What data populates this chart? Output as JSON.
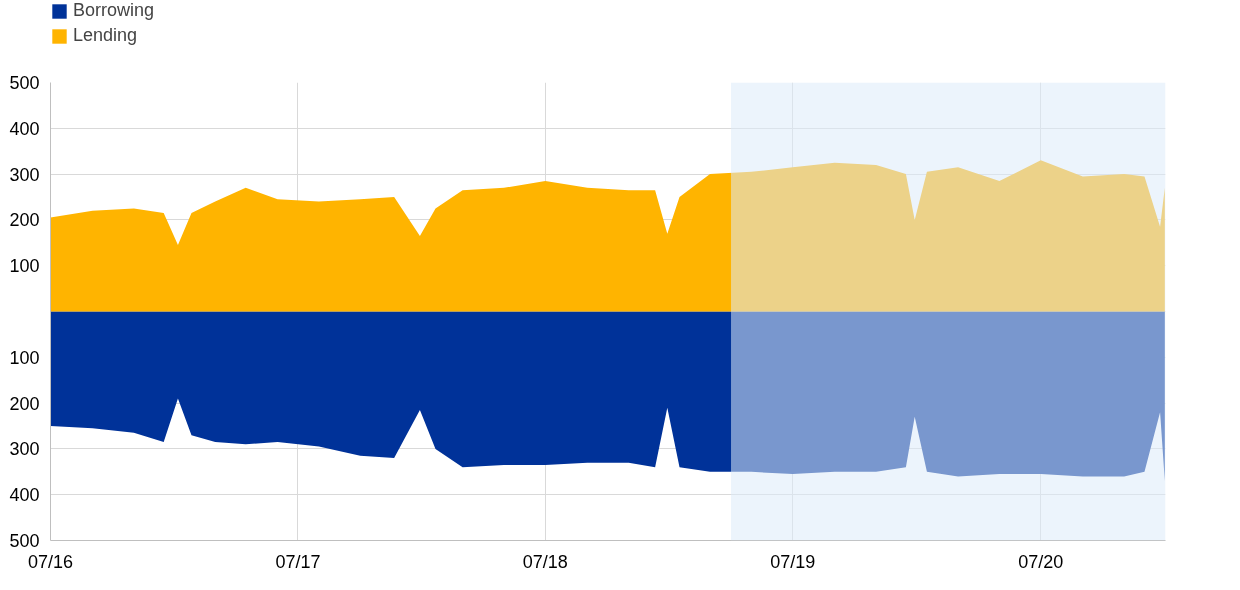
{
  "chart_data": {
    "type": "area",
    "legend": "top left",
    "grid": true,
    "x": [
      "2016-07-01",
      "2016-09-01",
      "2016-11-01",
      "2016-12-15",
      "2017-01-05",
      "2017-01-25",
      "2017-03-01",
      "2017-04-15",
      "2017-06-01",
      "2017-08-01",
      "2017-10-01",
      "2017-11-20",
      "2017-12-28",
      "2018-01-20",
      "2018-03-01",
      "2018-05-01",
      "2018-07-01",
      "2018-09-01",
      "2018-11-01",
      "2018-12-10",
      "2018-12-28",
      "2019-01-15",
      "2019-03-01",
      "2019-05-01",
      "2019-07-01",
      "2019-09-01",
      "2019-11-01",
      "2019-12-15",
      "2019-12-28",
      "2020-01-15",
      "2020-03-01",
      "2020-05-01",
      "2020-07-01",
      "2020-09-01",
      "2020-11-01",
      "2020-12-01",
      "2020-12-24",
      "2020-12-31"
    ],
    "series": [
      {
        "name": "Borrowing",
        "color": "#003299",
        "values": [
          -250,
          -255,
          -265,
          -285,
          -190,
          -270,
          -285,
          -290,
          -285,
          -295,
          -315,
          -320,
          -215,
          -300,
          -340,
          -335,
          -335,
          -330,
          -330,
          -340,
          -210,
          -340,
          -350,
          -350,
          -355,
          -350,
          -350,
          -340,
          -230,
          -350,
          -360,
          -355,
          -355,
          -360,
          -360,
          -350,
          -220,
          -370
        ]
      },
      {
        "name": "Lending",
        "color": "#ffb400",
        "values": [
          205,
          220,
          225,
          215,
          145,
          215,
          240,
          270,
          245,
          240,
          245,
          250,
          165,
          225,
          265,
          270,
          285,
          270,
          265,
          265,
          170,
          250,
          300,
          305,
          315,
          325,
          320,
          300,
          200,
          305,
          315,
          285,
          330,
          295,
          300,
          295,
          185,
          270
        ]
      }
    ],
    "xlim": [
      "2016-07-01",
      "2021-01-01"
    ],
    "xticks": [
      {
        "value": "2016-07-01",
        "label": "07/16"
      },
      {
        "value": "2017-07-01",
        "label": "07/17"
      },
      {
        "value": "2018-07-01",
        "label": "07/18"
      },
      {
        "value": "2019-07-01",
        "label": "07/19"
      },
      {
        "value": "2020-07-01",
        "label": "07/20"
      }
    ],
    "ylim": [
      -500,
      500
    ],
    "yticks": [
      {
        "value": -500,
        "label": "500"
      },
      {
        "value": -400,
        "label": "400"
      },
      {
        "value": -300,
        "label": "300"
      },
      {
        "value": -200,
        "label": "200"
      },
      {
        "value": -100,
        "label": "100"
      },
      {
        "value": 0,
        "label": null
      },
      100,
      200,
      300,
      400,
      500
    ],
    "bands": [
      {
        "axis": "x",
        "from": "2019-04-01",
        "to": "2021-01-01",
        "color": "#dcebf9"
      }
    ]
  }
}
